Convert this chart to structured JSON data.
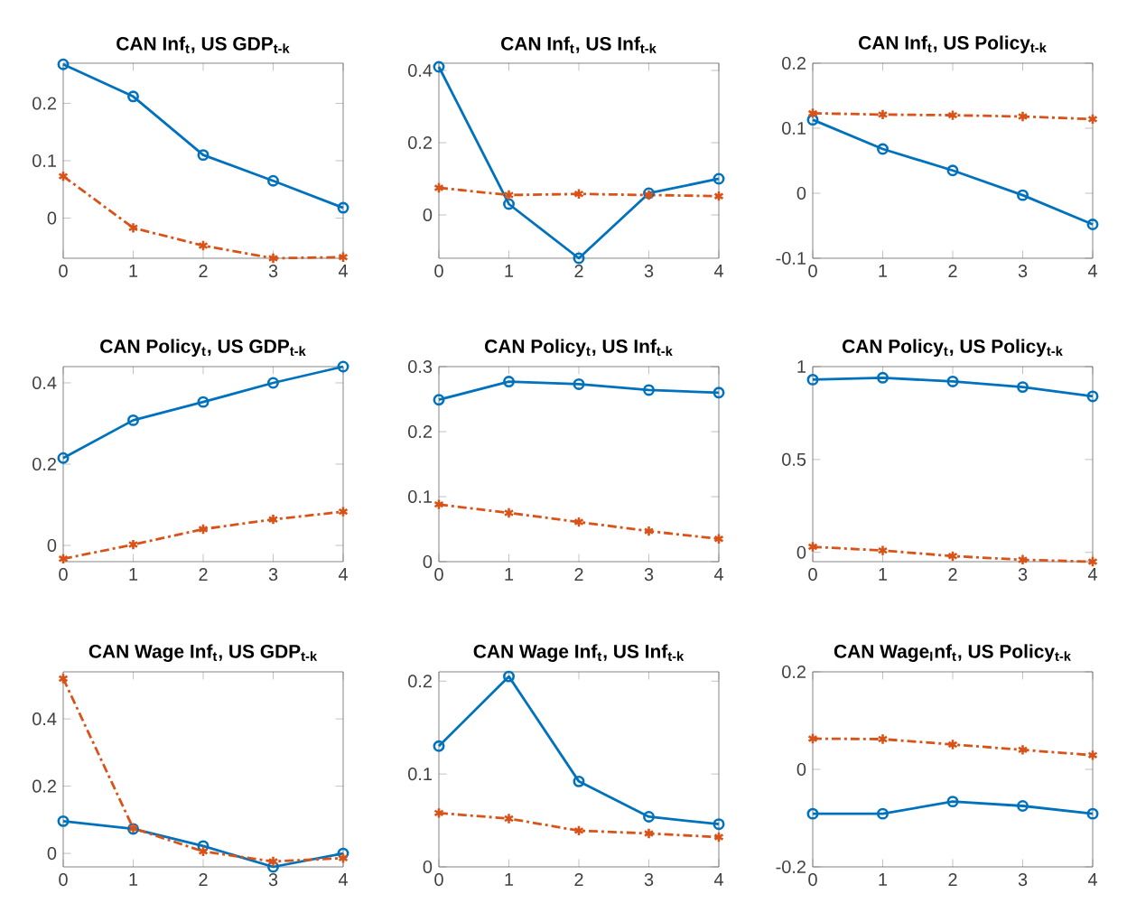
{
  "chart_data": [
    {
      "type": "line",
      "title": "CAN Inf$_{t}$, US GDP$_{t-k}$",
      "x": [
        0,
        1,
        2,
        3,
        4
      ],
      "xlim": [
        0,
        4
      ],
      "xticks": [
        0,
        1,
        2,
        3,
        4
      ],
      "ylim": [
        -0.07,
        0.27
      ],
      "yticks": [
        0,
        0.1,
        0.2
      ],
      "series": [
        {
          "color": "#0072bd",
          "marker": "circle",
          "line_style": "solid",
          "values": [
            0.268,
            0.212,
            0.11,
            0.065,
            0.018
          ]
        },
        {
          "color": "#d95319",
          "marker": "cross",
          "line_style": "dashed",
          "values": [
            0.073,
            -0.017,
            -0.048,
            -0.07,
            -0.068
          ]
        }
      ]
    },
    {
      "type": "line",
      "title": "CAN Inf$_{t}$, US Inf$_{t-k}$",
      "x": [
        0,
        1,
        2,
        3,
        4
      ],
      "xlim": [
        0,
        4
      ],
      "xticks": [
        0,
        1,
        2,
        3,
        4
      ],
      "ylim": [
        -0.12,
        0.42
      ],
      "yticks": [
        0,
        0.2,
        0.4
      ],
      "series": [
        {
          "color": "#0072bd",
          "marker": "circle",
          "line_style": "solid",
          "values": [
            0.41,
            0.03,
            -0.12,
            0.06,
            0.1
          ]
        },
        {
          "color": "#d95319",
          "marker": "cross",
          "line_style": "dashed",
          "values": [
            0.075,
            0.055,
            0.058,
            0.055,
            0.052
          ]
        }
      ]
    },
    {
      "type": "line",
      "title": "CAN Inf$_{t}$, US Policy$_{t-k}$",
      "x": [
        0,
        1,
        2,
        3,
        4
      ],
      "xlim": [
        0,
        4
      ],
      "xticks": [
        0,
        1,
        2,
        3,
        4
      ],
      "ylim": [
        -0.1,
        0.2
      ],
      "yticks": [
        -0.1,
        0,
        0.1,
        0.2
      ],
      "series": [
        {
          "color": "#0072bd",
          "marker": "circle",
          "line_style": "solid",
          "values": [
            0.113,
            0.068,
            0.035,
            -0.003,
            -0.048
          ]
        },
        {
          "color": "#d95319",
          "marker": "cross",
          "line_style": "dashed",
          "values": [
            0.123,
            0.121,
            0.12,
            0.118,
            0.114
          ]
        }
      ]
    },
    {
      "type": "line",
      "title": "CAN Policy$_{t}$, US GDP$_{t-k}$",
      "x": [
        0,
        1,
        2,
        3,
        4
      ],
      "xlim": [
        0,
        4
      ],
      "xticks": [
        0,
        1,
        2,
        3,
        4
      ],
      "ylim": [
        -0.04,
        0.44
      ],
      "yticks": [
        0,
        0.2,
        0.4
      ],
      "series": [
        {
          "color": "#0072bd",
          "marker": "circle",
          "line_style": "solid",
          "values": [
            0.215,
            0.308,
            0.353,
            0.4,
            0.44
          ]
        },
        {
          "color": "#d95319",
          "marker": "cross",
          "line_style": "dashed",
          "values": [
            -0.033,
            0.002,
            0.04,
            0.064,
            0.083
          ]
        }
      ]
    },
    {
      "type": "line",
      "title": "CAN Policy$_{t}$, US Inf$_{t-k}$",
      "x": [
        0,
        1,
        2,
        3,
        4
      ],
      "xlim": [
        0,
        4
      ],
      "xticks": [
        0,
        1,
        2,
        3,
        4
      ],
      "ylim": [
        0,
        0.3
      ],
      "yticks": [
        0,
        0.1,
        0.2,
        0.3
      ],
      "series": [
        {
          "color": "#0072bd",
          "marker": "circle",
          "line_style": "solid",
          "values": [
            0.249,
            0.277,
            0.273,
            0.264,
            0.26
          ]
        },
        {
          "color": "#d95319",
          "marker": "cross",
          "line_style": "dashed",
          "values": [
            0.088,
            0.075,
            0.061,
            0.047,
            0.035
          ]
        }
      ]
    },
    {
      "type": "line",
      "title": "CAN Policy$_{t}$, US Policy$_{t-k}$",
      "x": [
        0,
        1,
        2,
        3,
        4
      ],
      "xlim": [
        0,
        4
      ],
      "xticks": [
        0,
        1,
        2,
        3,
        4
      ],
      "ylim": [
        -0.05,
        1
      ],
      "yticks": [
        0,
        0.5,
        1
      ],
      "series": [
        {
          "color": "#0072bd",
          "marker": "circle",
          "line_style": "solid",
          "values": [
            0.93,
            0.94,
            0.92,
            0.89,
            0.84
          ]
        },
        {
          "color": "#d95319",
          "marker": "cross",
          "line_style": "dashed",
          "values": [
            0.03,
            0.01,
            -0.02,
            -0.04,
            -0.05
          ]
        }
      ]
    },
    {
      "type": "line",
      "title": "CAN Wage Inf$_{t}$, US GDP$_{t-k}$",
      "x": [
        0,
        1,
        2,
        3,
        4
      ],
      "xlim": [
        0,
        4
      ],
      "xticks": [
        0,
        1,
        2,
        3,
        4
      ],
      "ylim": [
        -0.04,
        0.54
      ],
      "yticks": [
        0,
        0.2,
        0.4
      ],
      "series": [
        {
          "color": "#0072bd",
          "marker": "circle",
          "line_style": "solid",
          "values": [
            0.096,
            0.073,
            0.022,
            -0.04,
            0.0
          ]
        },
        {
          "color": "#d95319",
          "marker": "cross",
          "line_style": "dashed",
          "values": [
            0.52,
            0.075,
            0.006,
            -0.024,
            -0.014
          ]
        }
      ]
    },
    {
      "type": "line",
      "title": "CAN Wage Inf$_{t}$, US Inf$_{t-k}$",
      "x": [
        0,
        1,
        2,
        3,
        4
      ],
      "xlim": [
        0,
        4
      ],
      "xticks": [
        0,
        1,
        2,
        3,
        4
      ],
      "ylim": [
        0,
        0.21
      ],
      "yticks": [
        0,
        0.1,
        0.2
      ],
      "series": [
        {
          "color": "#0072bd",
          "marker": "circle",
          "line_style": "solid",
          "values": [
            0.13,
            0.205,
            0.092,
            0.054,
            0.046
          ]
        },
        {
          "color": "#d95319",
          "marker": "cross",
          "line_style": "dashed",
          "values": [
            0.058,
            0.052,
            0.039,
            0.036,
            0.032
          ]
        }
      ]
    },
    {
      "type": "line",
      "title": "CAN Wage$_{I}$nf$_{t}$, US Policy$_{t-k}$",
      "x": [
        0,
        1,
        2,
        3,
        4
      ],
      "xlim": [
        0,
        4
      ],
      "xticks": [
        0,
        1,
        2,
        3,
        4
      ],
      "ylim": [
        -0.2,
        0.2
      ],
      "yticks": [
        -0.2,
        0,
        0.2
      ],
      "series": [
        {
          "color": "#0072bd",
          "marker": "circle",
          "line_style": "solid",
          "values": [
            -0.091,
            -0.091,
            -0.066,
            -0.075,
            -0.091
          ]
        },
        {
          "color": "#d95319",
          "marker": "cross",
          "line_style": "dashed",
          "values": [
            0.063,
            0.062,
            0.051,
            0.04,
            0.029
          ]
        }
      ]
    }
  ]
}
